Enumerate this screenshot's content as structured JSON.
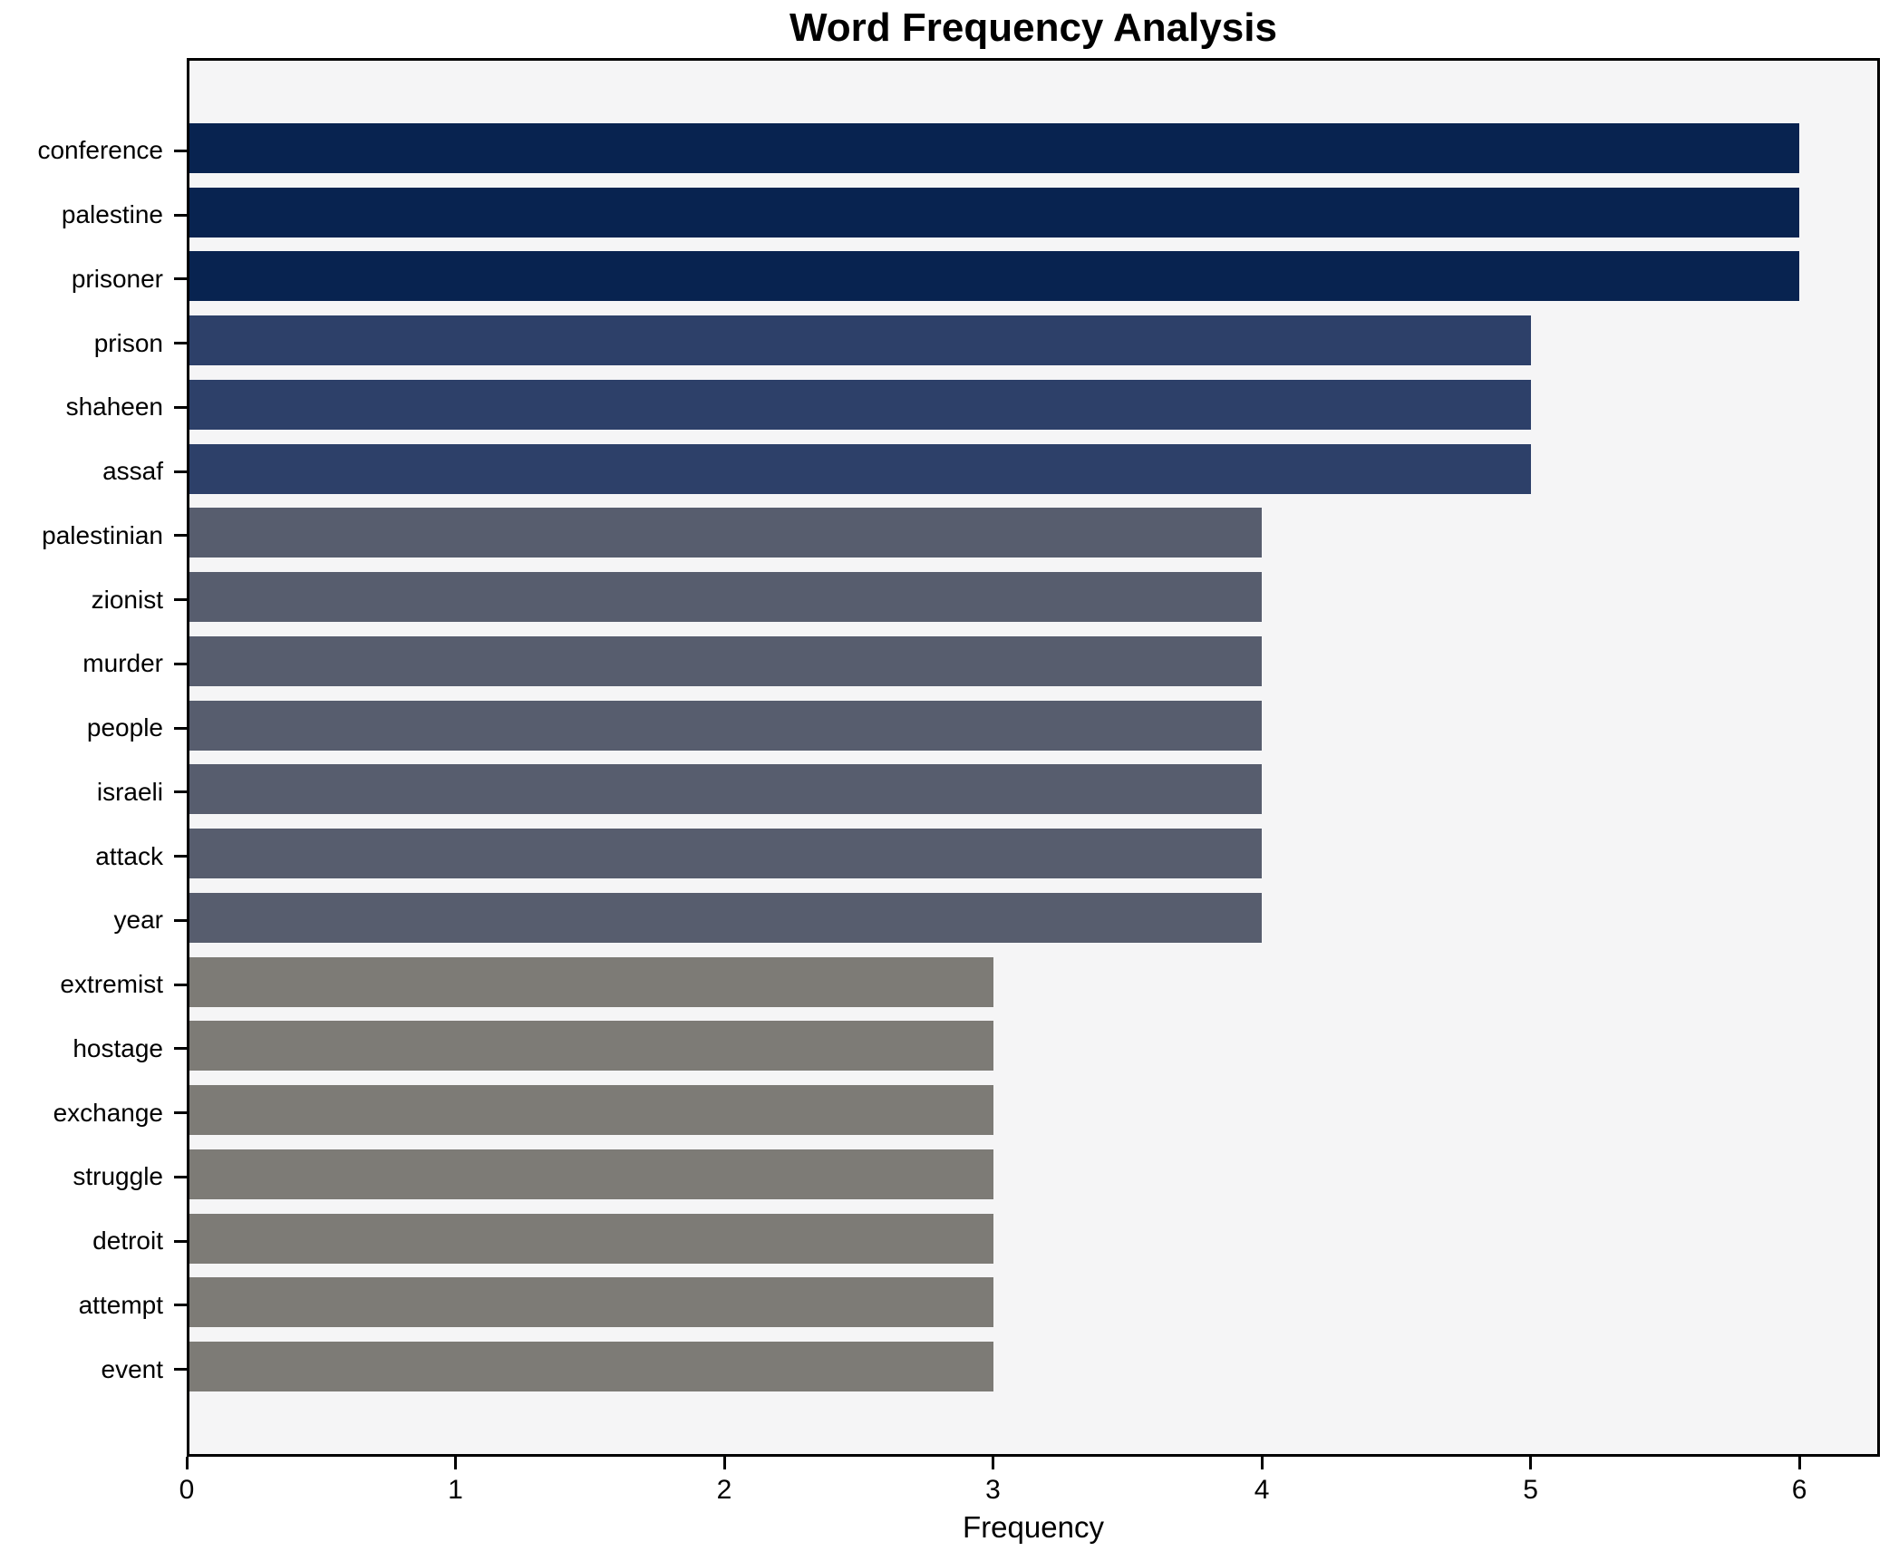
{
  "title": "Word Frequency Analysis",
  "chart_data": {
    "type": "bar",
    "orientation": "horizontal",
    "title": "Word Frequency Analysis",
    "xlabel": "Frequency",
    "ylabel": "",
    "categories": [
      "conference",
      "palestine",
      "prisoner",
      "prison",
      "shaheen",
      "assaf",
      "palestinian",
      "zionist",
      "murder",
      "people",
      "israeli",
      "attack",
      "year",
      "extremist",
      "hostage",
      "exchange",
      "struggle",
      "detroit",
      "attempt",
      "event"
    ],
    "values": [
      6,
      6,
      6,
      5,
      5,
      5,
      4,
      4,
      4,
      4,
      4,
      4,
      4,
      3,
      3,
      3,
      3,
      3,
      3,
      3
    ],
    "xticks": [
      0,
      1,
      2,
      3,
      4,
      5,
      6
    ],
    "xlim": [
      0,
      6.3
    ],
    "grid": false,
    "legend": null,
    "colors": {
      "value_6": "#082350",
      "value_5": "#2d4069",
      "value_4": "#575d6e",
      "value_3": "#7d7b76",
      "plot_background": "#f5f5f6",
      "figure_background": "#ffffff",
      "spine": "#000000",
      "text": "#000000"
    }
  }
}
